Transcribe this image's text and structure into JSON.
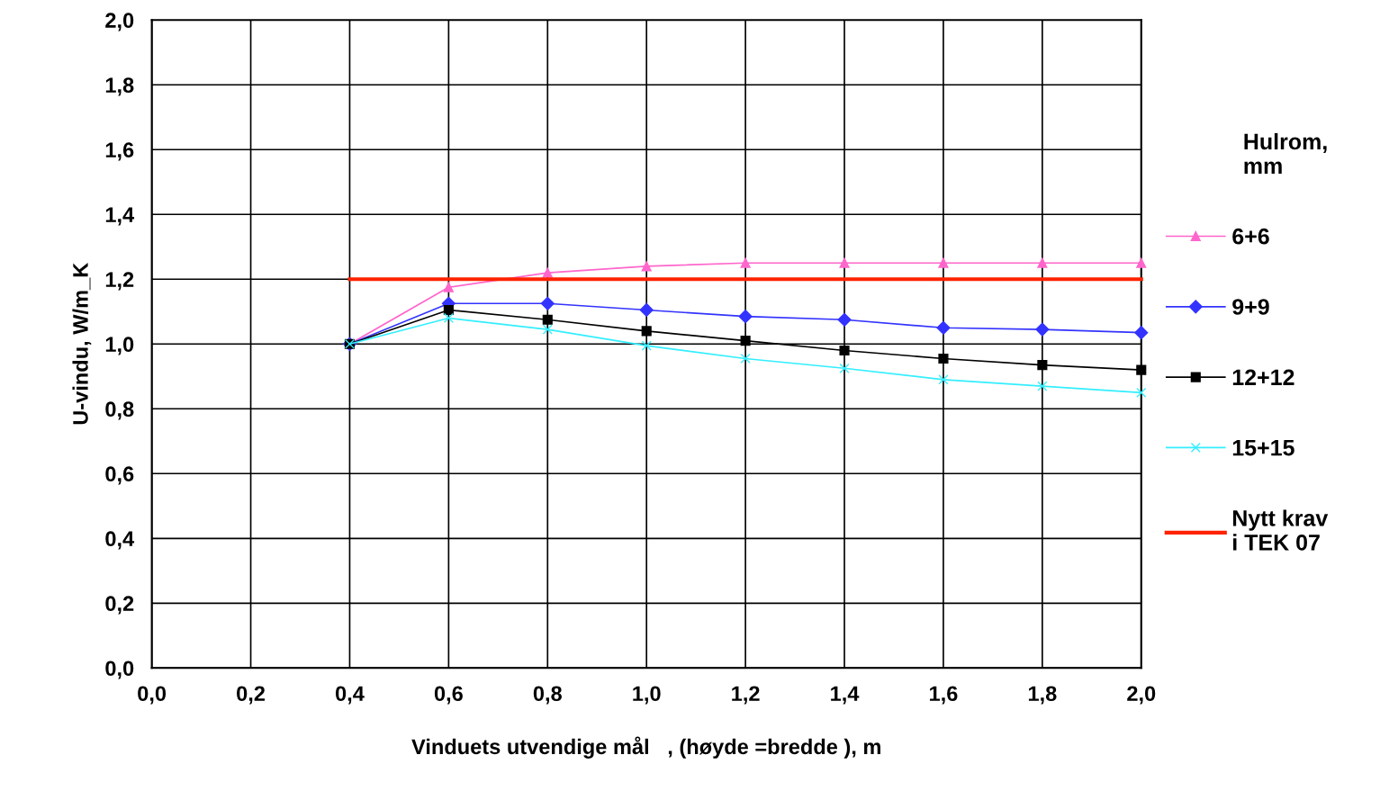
{
  "chart_data": {
    "type": "line",
    "xlabel": "Vinduets utvendige mål   , (høyde =bredde ), m",
    "ylabel": "U-vindu, W/m_K",
    "legend_title": "Hulrom,\nmm",
    "legend": "right",
    "grid": true,
    "x": [
      0.4,
      0.6,
      0.8,
      1.0,
      1.2,
      1.4,
      1.6,
      1.8,
      2.0
    ],
    "series": [
      {
        "name": "6+6",
        "color": "#ff66cc",
        "marker": "triangle",
        "values": [
          1.0,
          1.175,
          1.22,
          1.24,
          1.25,
          1.25,
          1.25,
          1.25,
          1.25
        ]
      },
      {
        "name": "9+9",
        "color": "#3333ff",
        "marker": "diamond",
        "values": [
          1.0,
          1.125,
          1.125,
          1.105,
          1.085,
          1.075,
          1.05,
          1.045,
          1.035
        ]
      },
      {
        "name": "12+12",
        "color": "#000000",
        "marker": "square",
        "values": [
          1.0,
          1.105,
          1.075,
          1.04,
          1.01,
          0.98,
          0.955,
          0.935,
          0.92
        ]
      },
      {
        "name": "15+15",
        "color": "#33eeff",
        "marker": "cross",
        "values": [
          1.0,
          1.08,
          1.045,
          0.995,
          0.955,
          0.925,
          0.89,
          0.87,
          0.85
        ]
      },
      {
        "name": "Nytt krav\ni TEK 07",
        "color": "#ff2200",
        "marker": "none",
        "x": [
          0.4,
          2.0
        ],
        "values": [
          1.2,
          1.2
        ]
      }
    ],
    "xlim": [
      0.0,
      2.0
    ],
    "ylim": [
      0.0,
      2.0
    ],
    "xticks": [
      {
        "value": 0.0,
        "label": "0,0"
      },
      {
        "value": 0.2,
        "label": "0,2"
      },
      {
        "value": 0.4,
        "label": "0,4"
      },
      {
        "value": 0.6,
        "label": "0,6"
      },
      {
        "value": 0.8,
        "label": "0,8"
      },
      {
        "value": 1.0,
        "label": "1,0"
      },
      {
        "value": 1.2,
        "label": "1,2"
      },
      {
        "value": 1.4,
        "label": "1,4"
      },
      {
        "value": 1.6,
        "label": "1,6"
      },
      {
        "value": 1.8,
        "label": "1,8"
      },
      {
        "value": 2.0,
        "label": "2,0"
      }
    ],
    "yticks": [
      {
        "value": 0.0,
        "label": "0,0"
      },
      {
        "value": 0.2,
        "label": "0,2"
      },
      {
        "value": 0.4,
        "label": "0,4"
      },
      {
        "value": 0.6,
        "label": "0,6"
      },
      {
        "value": 0.8,
        "label": "0,8"
      },
      {
        "value": 1.0,
        "label": "1,0"
      },
      {
        "value": 1.2,
        "label": "1,2"
      },
      {
        "value": 1.4,
        "label": "1,4"
      },
      {
        "value": 1.6,
        "label": "1,6"
      },
      {
        "value": 1.8,
        "label": "1,8"
      },
      {
        "value": 2.0,
        "label": "2,0"
      }
    ]
  }
}
